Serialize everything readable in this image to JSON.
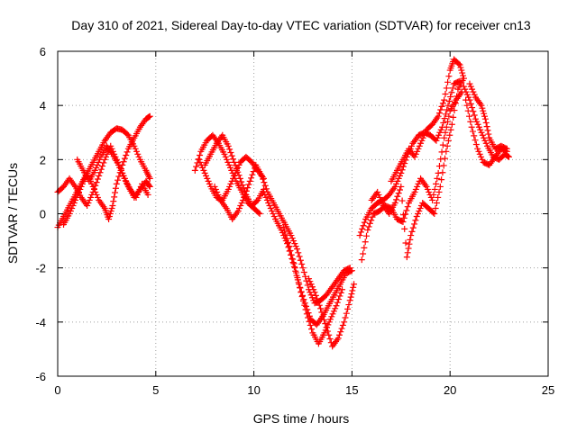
{
  "chart_data": {
    "type": "scatter",
    "title": "Day 310 of 2021, Sidereal Day-to-day VTEC variation (SDTVAR) for receiver cn13",
    "xlabel": "GPS time / hours",
    "ylabel": "SDTVAR / TECUs",
    "xlim": [
      0,
      25
    ],
    "ylim": [
      -6,
      6
    ],
    "xticks": [
      "0",
      "5",
      "10",
      "15",
      "20",
      "25"
    ],
    "yticks": [
      "-6",
      "-4",
      "-2",
      "0",
      "2",
      "4",
      "6"
    ],
    "grid": true,
    "marker": "plus",
    "color": "#ff0000",
    "series": [
      {
        "values": [
          [
            0.0,
            -0.5
          ],
          [
            0.3,
            -0.1
          ],
          [
            0.6,
            0.3
          ],
          [
            0.9,
            0.7
          ],
          [
            1.2,
            1.1
          ],
          [
            1.5,
            1.5
          ],
          [
            1.8,
            1.9
          ],
          [
            2.1,
            2.3
          ],
          [
            2.4,
            2.7
          ],
          [
            2.7,
            3.0
          ],
          [
            3.0,
            3.15
          ],
          [
            3.3,
            3.1
          ],
          [
            3.6,
            2.9
          ],
          [
            3.9,
            2.5
          ],
          [
            4.2,
            2.0
          ],
          [
            4.5,
            1.6
          ],
          [
            4.7,
            1.3
          ]
        ]
      },
      {
        "values": [
          [
            0.0,
            0.8
          ],
          [
            0.3,
            1.0
          ],
          [
            0.6,
            1.3
          ],
          [
            0.9,
            1.0
          ],
          [
            1.2,
            0.6
          ],
          [
            1.5,
            0.3
          ],
          [
            1.8,
            0.8
          ],
          [
            2.1,
            1.4
          ],
          [
            2.4,
            2.0
          ],
          [
            2.7,
            2.5
          ],
          [
            3.0,
            2.0
          ],
          [
            3.3,
            1.5
          ],
          [
            3.6,
            1.0
          ],
          [
            3.9,
            0.6
          ],
          [
            4.2,
            0.9
          ],
          [
            4.5,
            1.2
          ],
          [
            4.7,
            1.0
          ]
        ]
      },
      {
        "values": [
          [
            0.3,
            -0.4
          ],
          [
            0.6,
            0.0
          ],
          [
            0.9,
            0.5
          ],
          [
            1.2,
            1.0
          ],
          [
            1.5,
            1.5
          ],
          [
            1.8,
            1.0
          ],
          [
            2.1,
            0.5
          ],
          [
            2.4,
            0.2
          ],
          [
            2.6,
            -0.2
          ],
          [
            2.8,
            0.3
          ],
          [
            3.0,
            1.1
          ],
          [
            3.3,
            1.8
          ],
          [
            3.6,
            2.4
          ],
          [
            3.9,
            2.8
          ],
          [
            4.2,
            3.2
          ],
          [
            4.5,
            3.5
          ],
          [
            4.7,
            3.6
          ]
        ]
      },
      {
        "values": [
          [
            1.0,
            2.0
          ],
          [
            1.3,
            1.6
          ],
          [
            1.6,
            1.2
          ],
          [
            1.9,
            1.6
          ],
          [
            2.2,
            2.1
          ],
          [
            2.5,
            2.5
          ],
          [
            2.8,
            2.2
          ],
          [
            3.1,
            1.8
          ],
          [
            3.4,
            1.3
          ],
          [
            3.7,
            0.9
          ],
          [
            4.0,
            0.6
          ],
          [
            4.3,
            1.1
          ],
          [
            4.6,
            0.7
          ]
        ]
      },
      {
        "values": [
          [
            7.0,
            1.6
          ],
          [
            7.3,
            2.3
          ],
          [
            7.6,
            2.7
          ],
          [
            7.9,
            2.9
          ],
          [
            8.2,
            2.6
          ],
          [
            8.5,
            2.2
          ],
          [
            8.8,
            1.7
          ],
          [
            9.1,
            1.2
          ],
          [
            9.4,
            0.8
          ],
          [
            9.7,
            0.4
          ],
          [
            10.0,
            0.2
          ],
          [
            10.3,
            0.0
          ]
        ]
      },
      {
        "values": [
          [
            7.2,
            2.0
          ],
          [
            7.5,
            1.5
          ],
          [
            7.8,
            1.0
          ],
          [
            8.1,
            0.6
          ],
          [
            8.4,
            0.5
          ],
          [
            8.7,
            0.9
          ],
          [
            9.0,
            1.4
          ],
          [
            9.3,
            1.9
          ],
          [
            9.6,
            2.1
          ],
          [
            9.9,
            1.9
          ],
          [
            10.2,
            1.6
          ],
          [
            10.5,
            1.3
          ]
        ]
      },
      {
        "values": [
          [
            7.5,
            1.8
          ],
          [
            7.8,
            2.2
          ],
          [
            8.1,
            2.6
          ],
          [
            8.4,
            2.9
          ],
          [
            8.7,
            2.5
          ],
          [
            9.0,
            1.9
          ],
          [
            9.3,
            1.3
          ],
          [
            9.6,
            0.7
          ],
          [
            9.9,
            0.3
          ],
          [
            10.2,
            0.5
          ],
          [
            10.5,
            0.9
          ]
        ]
      },
      {
        "values": [
          [
            8.0,
            1.0
          ],
          [
            8.3,
            0.5
          ],
          [
            8.6,
            0.2
          ],
          [
            8.9,
            -0.2
          ],
          [
            9.2,
            0.1
          ],
          [
            9.5,
            0.6
          ],
          [
            9.8,
            1.2
          ],
          [
            10.1,
            1.8
          ],
          [
            10.4,
            1.4
          ],
          [
            10.7,
            0.8
          ],
          [
            11.0,
            0.4
          ],
          [
            11.3,
            0.0
          ],
          [
            11.6,
            -0.4
          ],
          [
            11.9,
            -0.8
          ],
          [
            12.2,
            -1.3
          ],
          [
            12.5,
            -2.0
          ],
          [
            12.8,
            -2.8
          ],
          [
            13.1,
            -3.3
          ],
          [
            13.4,
            -3.2
          ],
          [
            13.7,
            -3.0
          ],
          [
            14.0,
            -2.7
          ],
          [
            14.3,
            -2.4
          ],
          [
            14.6,
            -2.1
          ],
          [
            14.9,
            -2.0
          ]
        ]
      },
      {
        "values": [
          [
            10.5,
            0.8
          ],
          [
            10.8,
            0.3
          ],
          [
            11.1,
            -0.2
          ],
          [
            11.4,
            -0.6
          ],
          [
            11.7,
            -1.1
          ],
          [
            12.0,
            -1.8
          ],
          [
            12.3,
            -2.6
          ],
          [
            12.6,
            -3.3
          ],
          [
            12.9,
            -3.9
          ],
          [
            13.2,
            -4.1
          ],
          [
            13.5,
            -3.8
          ],
          [
            13.8,
            -3.4
          ],
          [
            14.1,
            -3.0
          ],
          [
            14.4,
            -2.6
          ],
          [
            14.7,
            -2.2
          ],
          [
            15.0,
            -2.1
          ]
        ]
      },
      {
        "values": [
          [
            11.5,
            -0.5
          ],
          [
            11.8,
            -1.2
          ],
          [
            12.1,
            -2.0
          ],
          [
            12.4,
            -2.9
          ],
          [
            12.7,
            -3.7
          ],
          [
            13.0,
            -4.4
          ],
          [
            13.3,
            -4.8
          ],
          [
            13.6,
            -4.4
          ],
          [
            13.9,
            -3.9
          ],
          [
            14.2,
            -3.4
          ],
          [
            14.5,
            -2.8
          ]
        ]
      },
      {
        "values": [
          [
            12.8,
            -2.4
          ],
          [
            13.1,
            -2.9
          ],
          [
            13.4,
            -3.5
          ],
          [
            13.7,
            -4.2
          ],
          [
            14.0,
            -4.9
          ],
          [
            14.3,
            -4.6
          ],
          [
            14.6,
            -4.0
          ],
          [
            14.9,
            -3.2
          ],
          [
            15.1,
            -2.6
          ]
        ]
      },
      {
        "values": [
          [
            15.4,
            -0.8
          ],
          [
            15.7,
            -0.2
          ],
          [
            16.0,
            0.2
          ],
          [
            16.3,
            0.4
          ],
          [
            16.6,
            0.5
          ],
          [
            16.9,
            0.7
          ],
          [
            17.2,
            1.0
          ],
          [
            17.5,
            1.5
          ],
          [
            17.8,
            2.1
          ],
          [
            18.1,
            2.6
          ],
          [
            18.4,
            2.9
          ],
          [
            18.7,
            3.0
          ],
          [
            19.0,
            2.9
          ],
          [
            19.3,
            2.7
          ],
          [
            19.6,
            3.2
          ],
          [
            19.9,
            4.0
          ],
          [
            20.2,
            4.8
          ],
          [
            20.5,
            4.9
          ]
        ]
      },
      {
        "values": [
          [
            15.5,
            -1.7
          ],
          [
            15.8,
            -0.6
          ],
          [
            16.1,
            0.0
          ],
          [
            16.4,
            0.1
          ],
          [
            16.7,
            0.3
          ],
          [
            17.0,
            0.2
          ],
          [
            17.3,
            -0.2
          ],
          [
            17.6,
            -0.3
          ],
          [
            17.9,
            0.4
          ],
          [
            18.2,
            0.8
          ],
          [
            18.5,
            1.3
          ],
          [
            18.8,
            1.0
          ],
          [
            19.1,
            0.5
          ],
          [
            19.4,
            1.5
          ],
          [
            19.7,
            2.8
          ],
          [
            20.0,
            3.8
          ],
          [
            20.3,
            4.2
          ],
          [
            20.6,
            4.5
          ]
        ]
      },
      {
        "values": [
          [
            16.0,
            0.5
          ],
          [
            16.3,
            0.8
          ],
          [
            16.6,
            0.3
          ],
          [
            16.9,
            0.0
          ],
          [
            17.2,
            0.4
          ],
          [
            17.5,
            1.0
          ],
          [
            17.8,
            -1.6
          ],
          [
            18.0,
            -0.8
          ],
          [
            18.3,
            -0.1
          ],
          [
            18.6,
            0.4
          ],
          [
            18.9,
            0.2
          ],
          [
            19.2,
            0.0
          ],
          [
            19.5,
            1.0
          ],
          [
            19.8,
            2.3
          ],
          [
            20.1,
            3.3
          ],
          [
            20.4,
            4.6
          ],
          [
            20.7,
            5.0
          ]
        ]
      },
      {
        "values": [
          [
            17.0,
            1.2
          ],
          [
            17.3,
            1.6
          ],
          [
            17.6,
            2.0
          ],
          [
            17.9,
            2.4
          ],
          [
            18.2,
            2.1
          ],
          [
            18.5,
            2.6
          ],
          [
            18.8,
            3.1
          ],
          [
            19.1,
            3.3
          ],
          [
            19.4,
            3.6
          ],
          [
            19.7,
            4.2
          ],
          [
            20.0,
            5.3
          ],
          [
            20.2,
            5.7
          ],
          [
            20.5,
            5.5
          ],
          [
            20.7,
            5.0
          ]
        ]
      },
      {
        "values": [
          [
            20.7,
            4.7
          ],
          [
            21.0,
            4.2
          ],
          [
            21.3,
            3.5
          ],
          [
            21.6,
            3.0
          ],
          [
            21.9,
            2.5
          ],
          [
            22.2,
            2.1
          ],
          [
            22.5,
            2.0
          ],
          [
            22.8,
            2.2
          ],
          [
            23.0,
            2.1
          ]
        ]
      },
      {
        "values": [
          [
            20.8,
            4.2
          ],
          [
            21.1,
            3.2
          ],
          [
            21.4,
            2.4
          ],
          [
            21.7,
            1.9
          ],
          [
            22.0,
            1.8
          ],
          [
            22.3,
            2.1
          ],
          [
            22.6,
            2.4
          ],
          [
            22.9,
            2.3
          ]
        ]
      },
      {
        "values": [
          [
            21.0,
            4.8
          ],
          [
            21.3,
            4.3
          ],
          [
            21.6,
            4.0
          ],
          [
            21.8,
            3.5
          ],
          [
            22.0,
            2.8
          ],
          [
            22.3,
            2.4
          ],
          [
            22.6,
            2.5
          ],
          [
            22.9,
            2.4
          ]
        ]
      }
    ]
  }
}
